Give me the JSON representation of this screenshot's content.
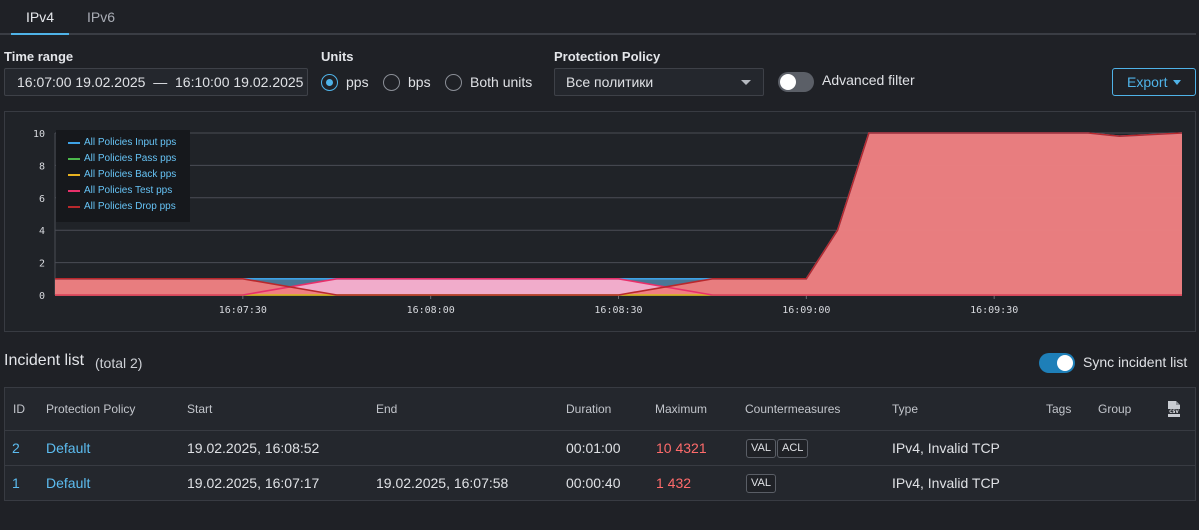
{
  "tabs": [
    {
      "label": "IPv4",
      "active": true
    },
    {
      "label": "IPv6",
      "active": false
    }
  ],
  "filters": {
    "time_range_label": "Time range",
    "time_range_value": "16:07:00 19.02.2025  —  16:10:00 19.02.2025",
    "units_label": "Units",
    "units_options": [
      "pps",
      "bps",
      "Both units"
    ],
    "units_selected": "pps",
    "policy_label": "Protection Policy",
    "policy_value": "Все политики",
    "advanced_filter_label": "Advanced filter",
    "advanced_filter_on": false,
    "export_label": "Export"
  },
  "chart_data": {
    "type": "area",
    "title": "",
    "xlabel": "",
    "ylabel": "",
    "x": [
      "16:07:00",
      "16:07:15",
      "16:07:30",
      "16:07:45",
      "16:08:00",
      "16:08:15",
      "16:08:30",
      "16:08:45",
      "16:08:52",
      "16:09:00",
      "16:09:05",
      "16:09:10",
      "16:09:30",
      "16:09:45",
      "16:09:50",
      "16:10:00"
    ],
    "x_ticks": [
      "16:07:30",
      "16:08:00",
      "16:08:30",
      "16:09:00",
      "16:09:30"
    ],
    "ylim": [
      0,
      10
    ],
    "y_ticks": [
      0,
      2,
      4,
      6,
      8,
      10
    ],
    "grid": true,
    "legend_position": "top-left",
    "series": [
      {
        "name": "All Policies Input pps",
        "color": "#3ea2e6",
        "values": [
          1,
          1,
          1,
          1,
          1,
          1,
          1,
          1,
          1,
          1,
          4,
          10,
          10,
          10,
          9.8,
          10
        ]
      },
      {
        "name": "All Policies Pass pps",
        "color": "#4cb84c",
        "values": [
          0,
          0,
          0,
          0,
          0,
          0,
          0,
          0,
          0,
          0,
          0,
          0,
          0,
          0,
          0,
          0
        ]
      },
      {
        "name": "All Policies Back pps",
        "color": "#e8b220",
        "values": [
          0,
          0,
          0,
          0,
          0,
          0,
          0,
          0,
          0,
          0,
          0,
          0,
          0,
          0,
          0,
          0
        ]
      },
      {
        "name": "All Policies Test pps",
        "color": "#e8306a",
        "values": [
          0,
          0,
          0,
          1,
          1,
          1,
          1,
          0,
          0,
          0,
          0,
          0,
          0,
          0,
          0,
          0
        ]
      },
      {
        "name": "All Policies Drop pps",
        "color": "#b8282c",
        "values": [
          1,
          1,
          1,
          0,
          0,
          0,
          0,
          1,
          1,
          1,
          4,
          10,
          10,
          10,
          9.8,
          10
        ]
      }
    ]
  },
  "incidents": {
    "title": "Incident list",
    "total": "(total 2)",
    "sync_label": "Sync incident list",
    "sync_on": true,
    "columns": [
      "ID",
      "Protection Policy",
      "Start",
      "End",
      "Duration",
      "Maximum",
      "Countermeasures",
      "Type",
      "Tags",
      "Group"
    ],
    "csv_icon": "csv-file-icon",
    "rows": [
      {
        "id": "2",
        "policy": "Default",
        "start": "19.02.2025, 16:08:52",
        "end": "",
        "duration": "00:01:00",
        "maximum": "10 4321",
        "countermeasures": [
          "VAL",
          "ACL"
        ],
        "type": "IPv4, Invalid TCP",
        "tags": "",
        "group": ""
      },
      {
        "id": "1",
        "policy": "Default",
        "start": "19.02.2025, 16:07:17",
        "end": "19.02.2025, 16:07:58",
        "duration": "00:00:40",
        "maximum": "1 432",
        "countermeasures": [
          "VAL"
        ],
        "type": "IPv4, Invalid TCP",
        "tags": "",
        "group": ""
      }
    ]
  }
}
